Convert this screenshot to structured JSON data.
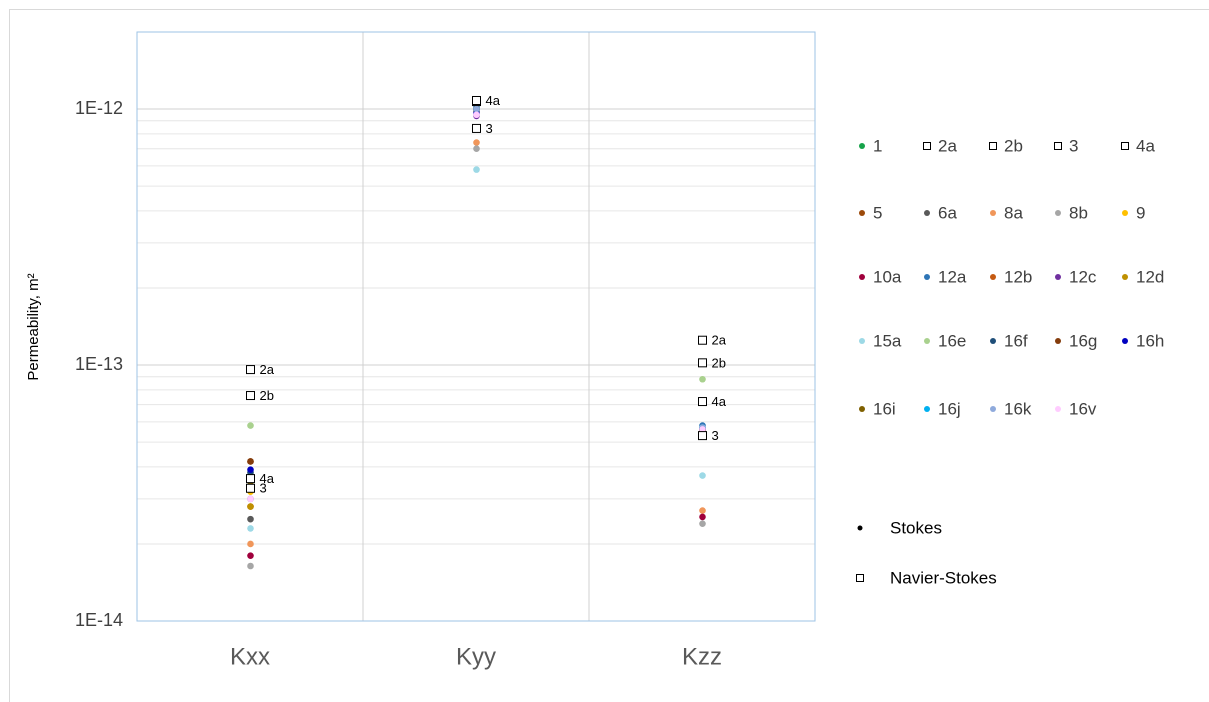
{
  "chart_data": {
    "type": "dot-log",
    "y_label": "Permeability, m²",
    "categories": [
      "Kxx",
      "Kyy",
      "Kzz"
    ],
    "log_y": true,
    "ylim": [
      1e-14,
      2e-12
    ],
    "yticks": [
      {
        "value": 1e-14,
        "label": "1E-14"
      },
      {
        "value": 1e-13,
        "label": "1E-13"
      },
      {
        "value": 1e-12,
        "label": "1E-12"
      }
    ],
    "yminor": [
      2e-14,
      3e-14,
      4e-14,
      5e-14,
      6e-14,
      7e-14,
      8e-14,
      9e-14,
      2e-13,
      3e-13,
      4e-13,
      5e-13,
      6e-13,
      7e-13,
      8e-13,
      9e-13
    ],
    "grid": true,
    "series": [
      {
        "name": "1",
        "color": "#16a34a",
        "marker": "circle",
        "values": [
          3.5e-14,
          1e-12,
          5.6e-14
        ]
      },
      {
        "name": "2a",
        "color": "#000000",
        "marker": "square",
        "values": [
          9.6e-14,
          1.08e-12,
          1.25e-13
        ]
      },
      {
        "name": "2b",
        "color": "#000000",
        "marker": "square",
        "values": [
          7.6e-14,
          1.07e-12,
          1.02e-13
        ]
      },
      {
        "name": "3",
        "color": "#000000",
        "marker": "square",
        "values": [
          3.3e-14,
          8.4e-13,
          5.3e-14
        ]
      },
      {
        "name": "4a",
        "color": "#000000",
        "marker": "square",
        "values": [
          3.6e-14,
          1.08e-12,
          7.2e-14
        ]
      },
      {
        "name": "5",
        "color": "#9c4a0a",
        "marker": "circle",
        "values": [
          4.2e-14,
          1e-12,
          5.6e-14
        ]
      },
      {
        "name": "6a",
        "color": "#595959",
        "marker": "circle",
        "values": [
          2.5e-14,
          9.8e-13,
          5.5e-14
        ]
      },
      {
        "name": "8a",
        "color": "#f0965a",
        "marker": "circle",
        "values": [
          2e-14,
          7.4e-13,
          2.7e-14
        ]
      },
      {
        "name": "8b",
        "color": "#a6a6a6",
        "marker": "circle",
        "values": [
          1.64e-14,
          7e-13,
          2.4e-14
        ]
      },
      {
        "name": "9",
        "color": "#ffc000",
        "marker": "circle",
        "values": [
          3.2e-14,
          1.06e-12,
          5.5e-14
        ]
      },
      {
        "name": "10a",
        "color": "#a0003c",
        "marker": "circle",
        "values": [
          1.8e-14,
          1e-12,
          2.55e-14
        ]
      },
      {
        "name": "12a",
        "color": "#2e75b6",
        "marker": "circle",
        "values": [
          3.7e-14,
          1.02e-12,
          5.8e-14
        ]
      },
      {
        "name": "12b",
        "color": "#c55a11",
        "marker": "circle",
        "values": [
          2.8e-14,
          1e-12,
          5.6e-14
        ]
      },
      {
        "name": "12c",
        "color": "#7030a0",
        "marker": "circle",
        "values": [
          3e-14,
          9.4e-13,
          5.6e-14
        ]
      },
      {
        "name": "12d",
        "color": "#bf9000",
        "marker": "circle",
        "values": [
          2.8e-14,
          1.06e-12,
          5.5e-14
        ]
      },
      {
        "name": "15a",
        "color": "#9dd9e6",
        "marker": "circle",
        "values": [
          2.3e-14,
          5.8e-13,
          3.7e-14
        ]
      },
      {
        "name": "16e",
        "color": "#a9d18e",
        "marker": "circle",
        "values": [
          5.8e-14,
          1e-12,
          8.8e-14
        ]
      },
      {
        "name": "16f",
        "color": "#1f4e79",
        "marker": "circle",
        "values": [
          3.8e-14,
          1e-12,
          5.7e-14
        ]
      },
      {
        "name": "16g",
        "color": "#843c0c",
        "marker": "circle",
        "values": [
          4.2e-14,
          1e-12,
          5.6e-14
        ]
      },
      {
        "name": "16h",
        "color": "#0000c0",
        "marker": "circle",
        "values": [
          3.9e-14,
          9.6e-13,
          5.6e-14
        ]
      },
      {
        "name": "16i",
        "color": "#7f6000",
        "marker": "circle",
        "values": [
          3.5e-14,
          1.05e-12,
          5.5e-14
        ]
      },
      {
        "name": "16j",
        "color": "#00b0f0",
        "marker": "circle",
        "values": [
          3.6e-14,
          1e-12,
          5.7e-14
        ]
      },
      {
        "name": "16k",
        "color": "#8faadc",
        "marker": "circle",
        "values": [
          3.6e-14,
          1e-12,
          5.7e-14
        ]
      },
      {
        "name": "16v",
        "color": "#ffccff",
        "marker": "circle",
        "values": [
          3e-14,
          9.5e-13,
          5.6e-14
        ]
      }
    ],
    "marker_legend": [
      {
        "name": "Stokes",
        "marker": "circle"
      },
      {
        "name": "Navier-Stokes",
        "marker": "square"
      }
    ]
  }
}
